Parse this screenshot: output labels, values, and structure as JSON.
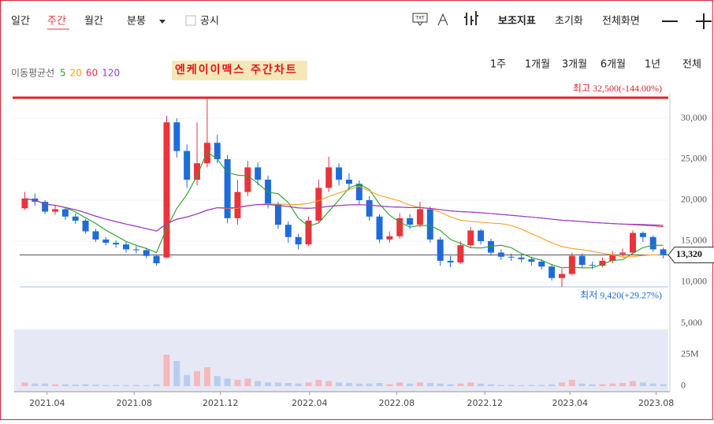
{
  "toolbar": {
    "periods": [
      "일간",
      "주간",
      "월간",
      "분봉"
    ],
    "disclosure": "공시",
    "tools": [
      "보조지표",
      "초기화",
      "전체화면"
    ]
  },
  "ranges": [
    "1주",
    "1개월",
    "3개월",
    "6개월",
    "1년",
    "전체"
  ],
  "chart_data": {
    "type": "candlestick",
    "title": "엔케이이맥스 주간차트",
    "ma_label": "이동평균선",
    "ma": [
      {
        "period": 5,
        "color": "#2ca02c"
      },
      {
        "period": 20,
        "color": "#f0a020"
      },
      {
        "period": 60,
        "color": "#e03050"
      },
      {
        "period": 120,
        "color": "#9040d0"
      }
    ],
    "up_color": "#e8343a",
    "down_color": "#1f6bd8",
    "open": [
      19000,
      20200,
      19800,
      18600,
      18900,
      18000,
      17500,
      16200,
      15200,
      14800,
      14600,
      14000,
      13900,
      13200,
      13000,
      29500,
      26000,
      22500,
      24500,
      27000,
      25000,
      17800,
      21000,
      24000,
      22500,
      19500,
      17000,
      15500,
      14600,
      17500,
      21500,
      24000,
      22500,
      22000,
      20000,
      18000,
      15200,
      15600,
      17800,
      17000,
      18900,
      15200,
      12600,
      12400,
      14500,
      16300,
      15000,
      13600,
      13100,
      13000,
      12800,
      12500,
      11900,
      10500,
      11000,
      13200,
      12100,
      12000,
      12600,
      13400,
      13600,
      16000,
      15500,
      14000
    ],
    "high": [
      21000,
      20800,
      20000,
      19400,
      19100,
      18400,
      17700,
      16500,
      15500,
      15100,
      14900,
      14400,
      14200,
      13400,
      30300,
      30000,
      26800,
      29500,
      32500,
      28000,
      25500,
      22500,
      24800,
      24600,
      23000,
      19800,
      17400,
      15900,
      18000,
      22500,
      25300,
      24500,
      23300,
      22400,
      20500,
      18300,
      16200,
      18400,
      18300,
      19800,
      19200,
      15500,
      13200,
      15000,
      16700,
      16500,
      15300,
      14000,
      13500,
      13400,
      13100,
      12800,
      12200,
      11600,
      13600,
      13500,
      12500,
      13000,
      13800,
      14100,
      16300,
      16200,
      15700,
      14200
    ],
    "low": [
      18800,
      19300,
      18300,
      18200,
      17600,
      17100,
      15900,
      14900,
      14500,
      14200,
      13600,
      13500,
      12900,
      12000,
      12900,
      25200,
      21500,
      21800,
      24000,
      24500,
      17200,
      17000,
      20500,
      21800,
      19000,
      16500,
      14800,
      14000,
      14400,
      17200,
      21000,
      21800,
      21200,
      19500,
      17500,
      14800,
      14800,
      15300,
      16500,
      16700,
      14800,
      12000,
      11800,
      12200,
      14200,
      14600,
      13200,
      12700,
      12600,
      12400,
      12000,
      11500,
      10200,
      9420,
      10800,
      11700,
      11600,
      11800,
      12300,
      13000,
      13400,
      14900,
      13700,
      12900
    ],
    "close": [
      20200,
      19800,
      18600,
      18900,
      18000,
      17500,
      16200,
      15200,
      14800,
      14600,
      14000,
      13900,
      13200,
      12300,
      29500,
      26000,
      22500,
      24500,
      27000,
      25000,
      17800,
      21000,
      24000,
      22500,
      19500,
      17000,
      15500,
      14600,
      17500,
      21500,
      24000,
      22500,
      22000,
      20000,
      18000,
      15200,
      15600,
      17800,
      17000,
      18900,
      15200,
      12600,
      12400,
      14500,
      16300,
      15000,
      13600,
      13100,
      13000,
      12800,
      12500,
      11900,
      10500,
      11000,
      13200,
      12100,
      12000,
      12600,
      13400,
      13600,
      16000,
      15500,
      14000,
      13320
    ],
    "volume": [
      3,
      2,
      2,
      1.5,
      1.5,
      1.2,
      1.5,
      1.2,
      1,
      1,
      0.8,
      1,
      0.8,
      1.5,
      25,
      20,
      9,
      12,
      15,
      8,
      6,
      5,
      6,
      4,
      3,
      3,
      2.5,
      2,
      3,
      5,
      4,
      3,
      2.5,
      2,
      2,
      2.5,
      1.5,
      3,
      2,
      3,
      2.5,
      2,
      1.5,
      2,
      3,
      2,
      1.5,
      1,
      1,
      0.8,
      1,
      1,
      1.5,
      3,
      5,
      2,
      1.5,
      1.5,
      2,
      2.5,
      4,
      3,
      2,
      1.5
    ],
    "xlim": [
      -0.5,
      63.5
    ],
    "xticks": [
      {
        "value": 2.2,
        "label": "2021.04"
      },
      {
        "value": 10.8,
        "label": "2021.08"
      },
      {
        "value": 19.3,
        "label": "2021.12"
      },
      {
        "value": 28.1,
        "label": "2022.04"
      },
      {
        "value": 36.7,
        "label": "2022.08"
      },
      {
        "value": 45.4,
        "label": "2022.12"
      },
      {
        "value": 53.8,
        "label": "2023.04"
      },
      {
        "value": 62.3,
        "label": "2023.08"
      }
    ],
    "ylim": [
      8650,
      35290
    ],
    "yticks": [
      {
        "value": 10000,
        "label": "10,000"
      },
      {
        "value": 15000,
        "label": "15,000"
      },
      {
        "value": 20000,
        "label": "20,000"
      },
      {
        "value": 25000,
        "label": "25,000"
      },
      {
        "value": 30000,
        "label": "30,000"
      }
    ],
    "vlim": [
      -4.4,
      45
    ],
    "vticks": [
      {
        "value": 0,
        "label": "0"
      },
      {
        "value": 25,
        "label": "25M"
      },
      {
        "value": 50,
        "label": "5,000"
      }
    ],
    "high_mark": {
      "value": 32500,
      "label": "최고 32,500(-144.00%)"
    },
    "low_mark": {
      "value": 9420,
      "label": "최저 9,420(+29.27%)"
    },
    "last_price": {
      "value": 13320,
      "label": "13,320"
    }
  }
}
